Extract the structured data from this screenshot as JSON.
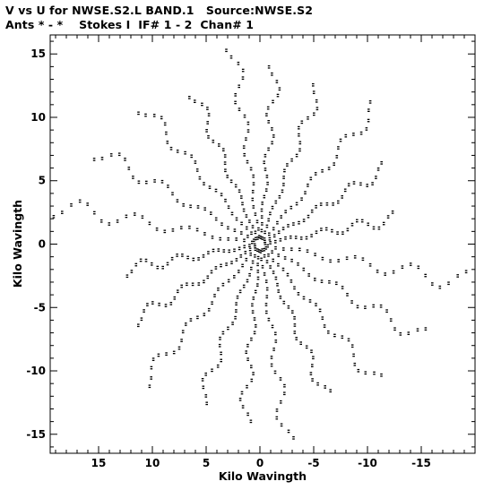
{
  "header": {
    "line1": "V vs U for NWSE.S2.L BAND.1   Source:NWSE.S2",
    "line2": "Ants * - *    Stokes I  IF# 1 - 2  Chan# 1"
  },
  "chart_data": {
    "type": "scatter",
    "title": "V vs U for NWSE.S2.L BAND.1   Source:NWSE.S2",
    "subtitle": "Ants * - *    Stokes I  IF# 1 - 2  Chan# 1",
    "xlabel": "Kilo Wavingth",
    "ylabel": "Kilo Wavingth",
    "xlim": [
      19.5,
      -20.0
    ],
    "ylim": [
      -16.5,
      16.5
    ],
    "x_reversed": true,
    "xticks": [
      15,
      10,
      5,
      0,
      -5,
      -10,
      -15
    ],
    "xtick_labels": [
      "15",
      "10",
      "5",
      "0",
      "-5",
      "-10",
      "-15"
    ],
    "yticks": [
      15,
      10,
      5,
      0,
      -5,
      -10,
      -15
    ],
    "ytick_labels": [
      "15",
      "10",
      "5",
      "0",
      "-5",
      "-10",
      "-15"
    ],
    "grid": false,
    "legend": "none",
    "marker_color": "#000000",
    "pattern": {
      "description_numbers": "uv-coverage arms: angle_deg, max_radius_klambda",
      "arms": [
        [
          9,
          19.3
        ],
        [
          26,
          16.8
        ],
        [
          45,
          15.3
        ],
        [
          63,
          13.3
        ],
        [
          81,
          15.6
        ],
        [
          96,
          14.0
        ],
        [
          114,
          13.5
        ],
        [
          135,
          15.2
        ],
        [
          153,
          13.0
        ],
        [
          171,
          12.6
        ],
        [
          189,
          19.3
        ],
        [
          206,
          16.8
        ],
        [
          225,
          15.3
        ],
        [
          243,
          13.3
        ],
        [
          261,
          15.6
        ],
        [
          276,
          14.0
        ],
        [
          294,
          13.5
        ],
        [
          315,
          15.2
        ],
        [
          333,
          13.0
        ],
        [
          351,
          12.6
        ]
      ],
      "points_per_arm": 26
    }
  }
}
